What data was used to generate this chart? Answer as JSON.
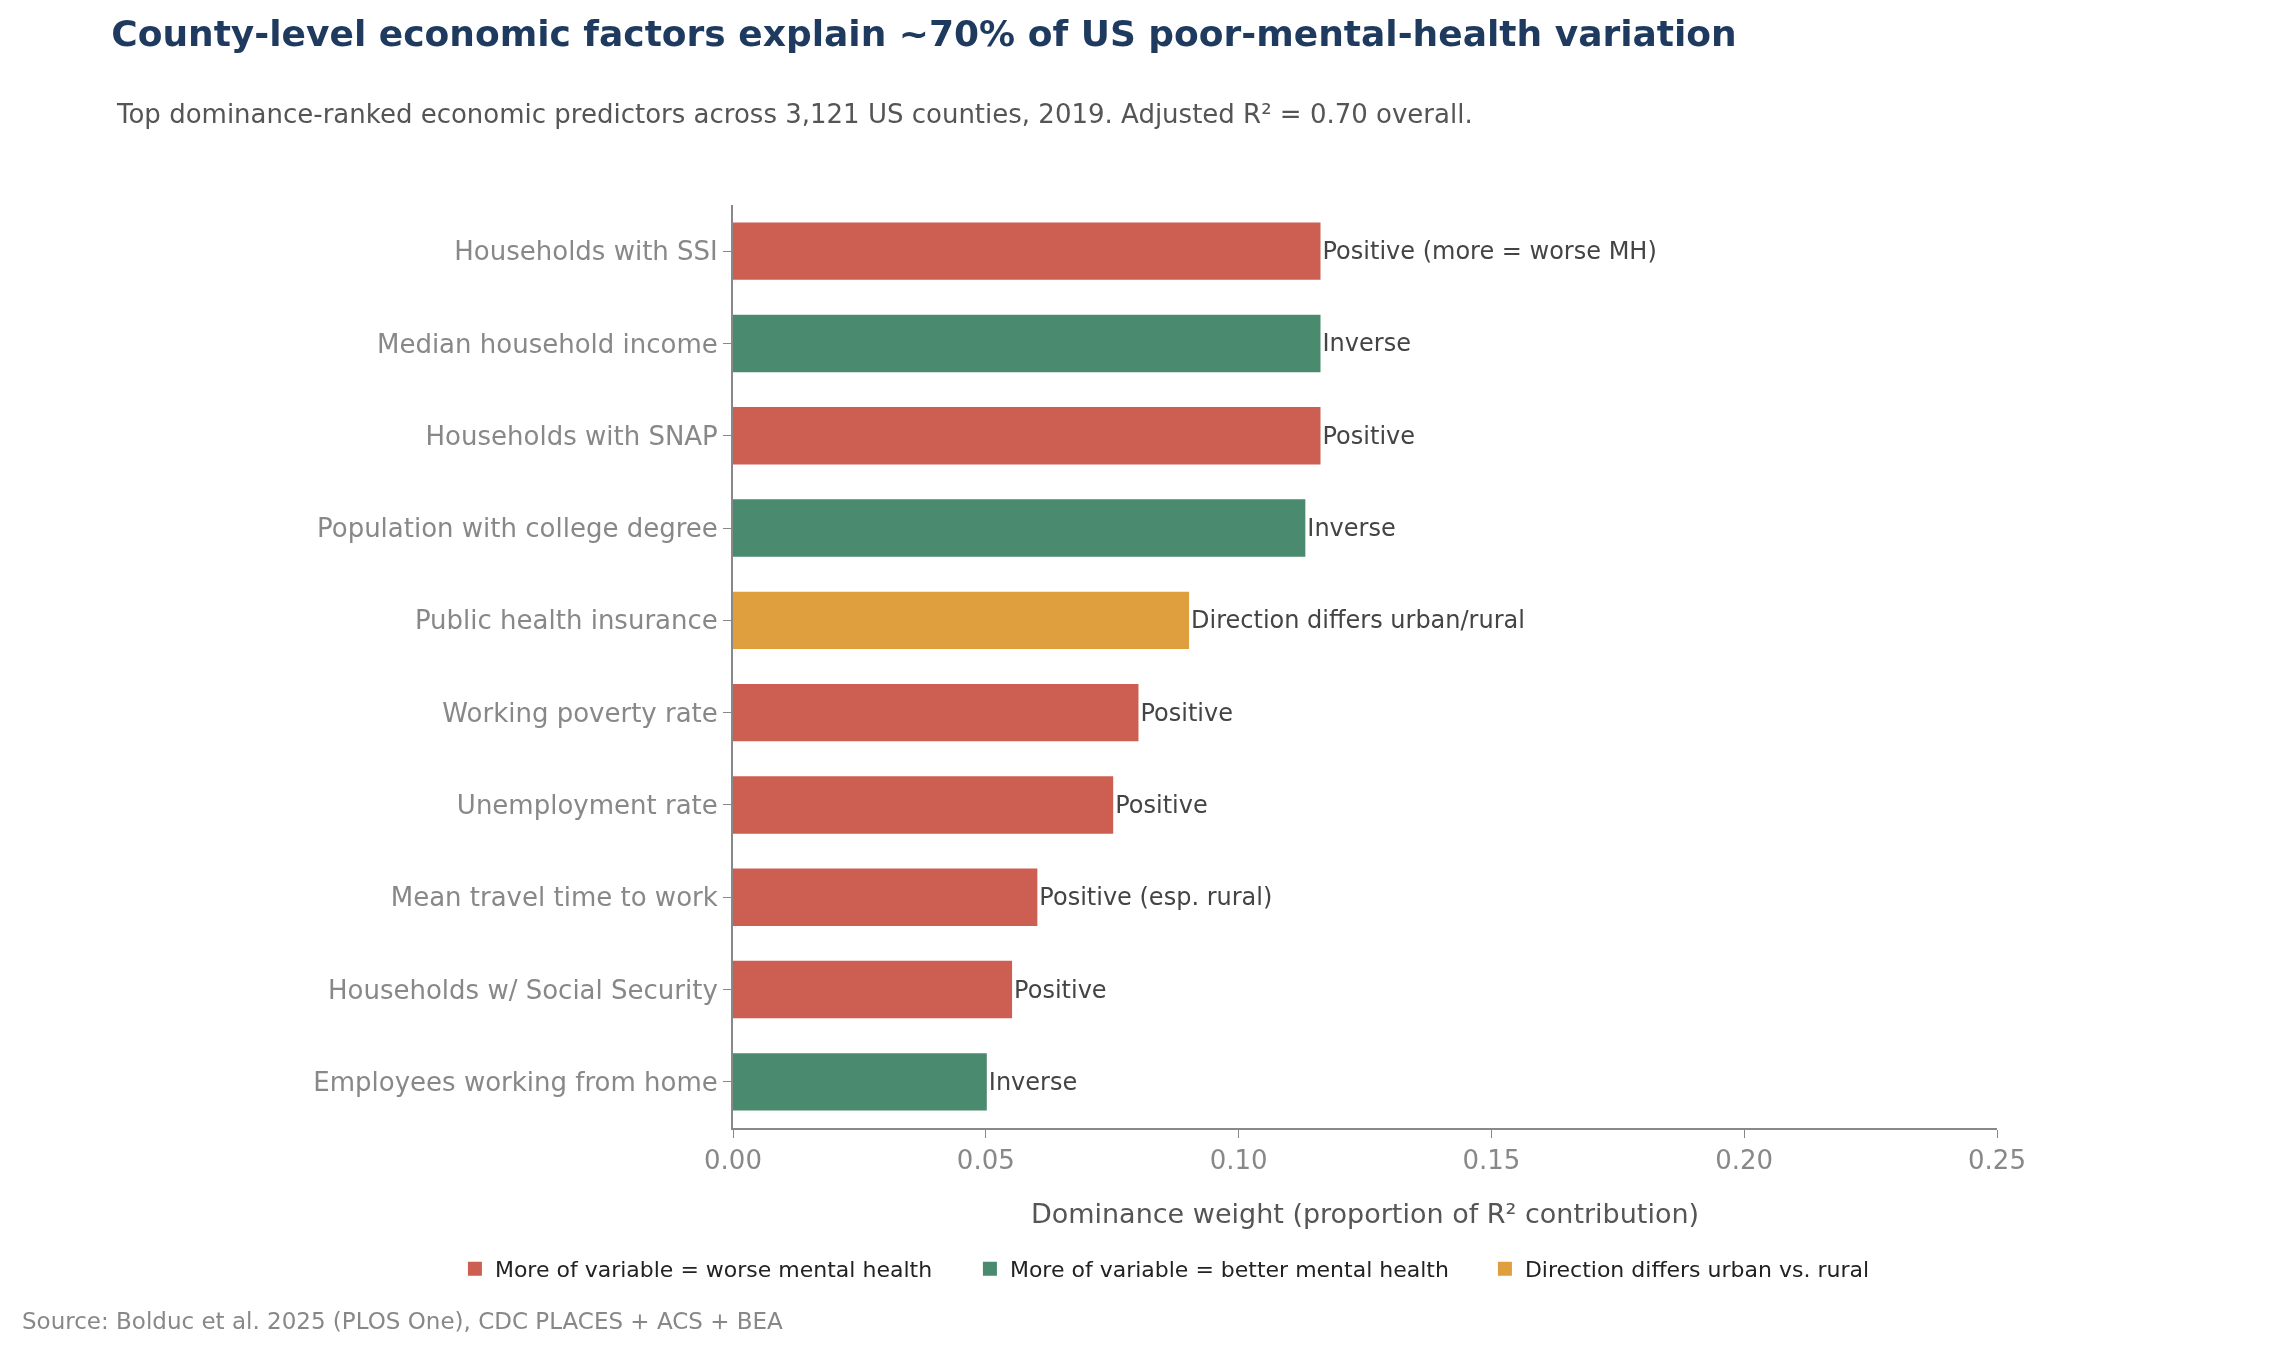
{
  "chart_data": {
    "type": "bar",
    "orientation": "horizontal",
    "title": "County-level economic factors explain ~70% of US poor-mental-health variation",
    "subtitle": "Top dominance-ranked economic predictors across 3,121 US counties, 2019. Adjusted R² = 0.70 overall.",
    "xlabel": "Dominance weight (proportion of R² contribution)",
    "categories": [
      "Households with SSI",
      "Median household income",
      "Households with SNAP",
      "Population with college degree",
      "Public health insurance",
      "Working poverty rate",
      "Unemployment rate",
      "Mean travel time to work",
      "Households w/ Social Security",
      "Employees working from home"
    ],
    "series": [
      {
        "name": "More of variable = worse mental health",
        "color": "#cd5f52",
        "values": [
          0.116,
          null,
          0.116,
          null,
          null,
          0.08,
          0.075,
          0.06,
          0.055,
          null
        ],
        "value_labels": [
          "Positive (more = worse MH)",
          null,
          "Positive",
          null,
          null,
          "Positive",
          "Positive",
          "Positive (esp. rural)",
          "Positive",
          null
        ]
      },
      {
        "name": "More of variable = better mental health",
        "color": "#4a8b6f",
        "values": [
          null,
          0.116,
          null,
          0.113,
          null,
          null,
          null,
          null,
          null,
          0.05
        ],
        "value_labels": [
          null,
          "Inverse",
          null,
          "Inverse",
          null,
          null,
          null,
          null,
          null,
          "Inverse"
        ]
      },
      {
        "name": "Direction differs urban vs. rural",
        "color": "#e09f3e",
        "values": [
          null,
          null,
          null,
          null,
          0.09,
          null,
          null,
          null,
          null,
          null
        ],
        "value_labels": [
          null,
          null,
          null,
          null,
          "Direction differs urban/rural",
          null,
          null,
          null,
          null,
          null
        ]
      }
    ],
    "xlim": [
      0,
      0.25
    ],
    "xticks": [
      "0.00",
      0.05,
      "0.10",
      0.15,
      "0.20",
      0.25
    ],
    "grid": false,
    "legend": "bottom",
    "annotations": [
      "Source: Bolduc et al. 2025 (PLOS One), CDC PLACES + ACS + BEA"
    ]
  }
}
